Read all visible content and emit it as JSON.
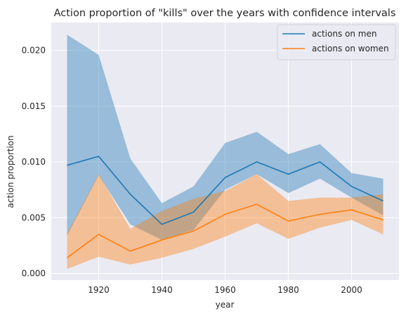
{
  "chart_data": {
    "type": "line",
    "title": "Action proportion of \"kills\" over the years with confidence intervals",
    "xlabel": "year",
    "ylabel": "action proportion",
    "xlim": [
      1905,
      2015
    ],
    "ylim": [
      -0.0006,
      0.0225
    ],
    "x_ticks": [
      1920,
      1940,
      1960,
      1980,
      2000
    ],
    "y_ticks": [
      0.0,
      0.005,
      0.01,
      0.015,
      0.02
    ],
    "y_tick_labels": [
      "0.000",
      "0.005",
      "0.010",
      "0.015",
      "0.020"
    ],
    "grid": true,
    "legend_position": "top-right",
    "x": [
      1910,
      1920,
      1930,
      1940,
      1950,
      1960,
      1970,
      1980,
      1990,
      2000,
      2010
    ],
    "series": [
      {
        "name": "actions on men",
        "color": "#1f77b4",
        "band_color": "#1f77b4",
        "values": [
          0.0097,
          0.0105,
          0.0071,
          0.0044,
          0.0055,
          0.0086,
          0.01,
          0.0089,
          0.01,
          0.0078,
          0.0065
        ],
        "lower": [
          0.0034,
          0.0088,
          0.0044,
          0.003,
          0.0039,
          0.0075,
          0.0089,
          0.0072,
          0.0085,
          0.0068,
          0.0052
        ],
        "upper": [
          0.0214,
          0.0196,
          0.0103,
          0.0063,
          0.0078,
          0.0117,
          0.0127,
          0.0107,
          0.0116,
          0.009,
          0.0085
        ]
      },
      {
        "name": "actions on women",
        "color": "#ff7f0e",
        "band_color": "#ff7f0e",
        "values": [
          0.0014,
          0.0035,
          0.002,
          0.003,
          0.0038,
          0.0053,
          0.0062,
          0.0047,
          0.0053,
          0.0057,
          0.0048
        ],
        "lower": [
          0.0004,
          0.0015,
          0.0008,
          0.0014,
          0.0022,
          0.0033,
          0.0045,
          0.0031,
          0.0041,
          0.0048,
          0.0035
        ],
        "upper": [
          0.0036,
          0.0089,
          0.004,
          0.0056,
          0.0067,
          0.0074,
          0.0089,
          0.0065,
          0.0068,
          0.0068,
          0.0071
        ]
      }
    ]
  }
}
